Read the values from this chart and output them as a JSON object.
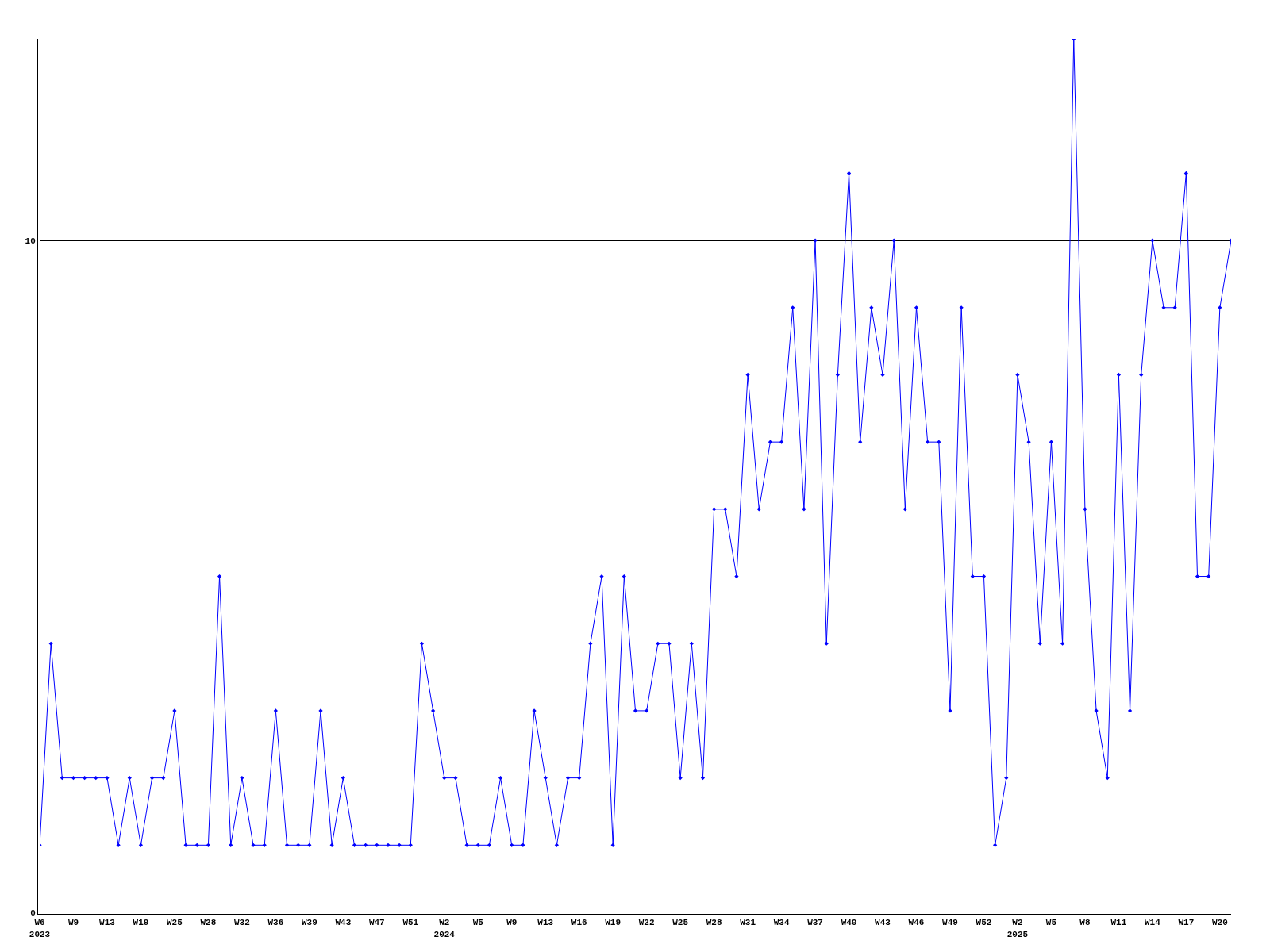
{
  "chart_data": {
    "type": "line",
    "categories": [
      "W6\n2023",
      null,
      null,
      "W9",
      null,
      null,
      "W13",
      null,
      null,
      "W19",
      null,
      null,
      "W25",
      null,
      null,
      "W28",
      null,
      null,
      "W32",
      null,
      null,
      "W36",
      null,
      null,
      "W39",
      null,
      null,
      "W43",
      null,
      null,
      "W47",
      null,
      null,
      "W51",
      null,
      null,
      "W2\n2024",
      null,
      null,
      "W5",
      null,
      null,
      "W9",
      null,
      null,
      "W13",
      null,
      null,
      "W16",
      null,
      null,
      "W19",
      null,
      null,
      "W22",
      null,
      null,
      "W25",
      null,
      null,
      "W28",
      null,
      null,
      "W31",
      null,
      null,
      "W34",
      null,
      null,
      "W37",
      null,
      null,
      "W40",
      null,
      null,
      "W43",
      null,
      null,
      "W46",
      null,
      null,
      "W49",
      null,
      null,
      "W52",
      null,
      null,
      "W2\n2025",
      null,
      null,
      "W5",
      null,
      null,
      "W8",
      null,
      null,
      "W11",
      null,
      null,
      "W14",
      null,
      null,
      "W17",
      null,
      null,
      "W20",
      null
    ],
    "series": [
      {
        "color": "#0000ff",
        "values": [
          1,
          4,
          2,
          2,
          2,
          2,
          2,
          1,
          2,
          1,
          2,
          2,
          3,
          1,
          1,
          1,
          5,
          1,
          2,
          1,
          1,
          3,
          1,
          1,
          1,
          3,
          1,
          2,
          1,
          1,
          1,
          1,
          1,
          1,
          4,
          3,
          2,
          2,
          1,
          1,
          1,
          2,
          1,
          1,
          3,
          2,
          1,
          2,
          2,
          4,
          5,
          1,
          5,
          3,
          3,
          4,
          4,
          2,
          4,
          2,
          6,
          6,
          5,
          8,
          6,
          7,
          7,
          9,
          6,
          10,
          4,
          8,
          11,
          7,
          9,
          8,
          10,
          6,
          9,
          7,
          7,
          3,
          9,
          5,
          5,
          1,
          2,
          8,
          7,
          4,
          7,
          4,
          13,
          6,
          3,
          2,
          8,
          3,
          8,
          10,
          9,
          9,
          11,
          5,
          5,
          9,
          10
        ]
      }
    ],
    "ylim": [
      0,
      13
    ],
    "yticks": [
      0,
      10
    ],
    "grid": "y",
    "marker": "diamond",
    "line_style": "solid"
  }
}
